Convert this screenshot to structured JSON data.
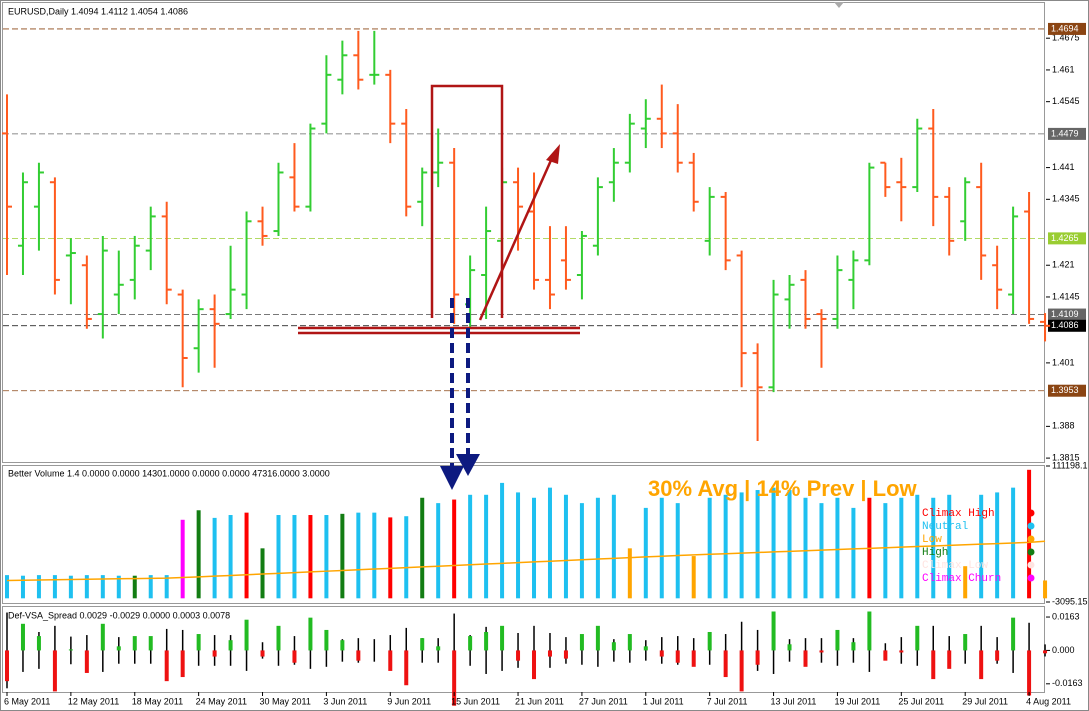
{
  "chart_data": [
    {
      "type": "ohlc",
      "title": "EURUSD,Daily  1.4094 1.4112 1.4054 1.4086",
      "open": [
        1.448,
        1.425,
        1.433,
        1.438,
        1.423,
        1.421,
        1.411,
        1.415,
        1.418,
        1.424,
        1.431,
        1.415,
        1.404,
        1.412,
        1.411,
        1.415,
        1.43,
        1.428,
        1.439,
        1.433,
        1.45,
        1.459,
        1.464,
        1.46,
        1.46,
        1.45,
        1.434,
        1.44,
        1.442,
        1.413,
        1.419,
        1.426,
        1.438,
        1.432,
        1.418,
        1.422,
        1.419,
        1.425,
        1.438,
        1.442,
        1.449,
        1.451,
        1.448,
        1.442,
        1.426,
        1.435,
        1.423,
        1.403,
        1.396,
        1.414,
        1.418,
        1.411,
        1.41,
        1.418,
        1.422,
        1.442,
        1.438,
        1.437,
        1.449,
        1.435,
        1.43,
        1.437,
        1.421,
        1.415,
        1.432,
        1.4094
      ],
      "high": [
        1.456,
        1.44,
        1.442,
        1.439,
        1.4265,
        1.423,
        1.427,
        1.424,
        1.427,
        1.433,
        1.434,
        1.416,
        1.414,
        1.415,
        1.425,
        1.432,
        1.433,
        1.442,
        1.446,
        1.45,
        1.464,
        1.467,
        1.469,
        1.469,
        1.461,
        1.453,
        1.441,
        1.449,
        1.445,
        1.423,
        1.433,
        1.441,
        1.441,
        1.44,
        1.429,
        1.429,
        1.428,
        1.439,
        1.445,
        1.452,
        1.455,
        1.458,
        1.454,
        1.444,
        1.437,
        1.436,
        1.424,
        1.405,
        1.418,
        1.419,
        1.42,
        1.412,
        1.423,
        1.424,
        1.442,
        1.442,
        1.443,
        1.451,
        1.453,
        1.437,
        1.439,
        1.442,
        1.425,
        1.433,
        1.436,
        1.4112
      ],
      "low": [
        1.419,
        1.419,
        1.424,
        1.415,
        1.413,
        1.408,
        1.406,
        1.411,
        1.414,
        1.42,
        1.413,
        1.396,
        1.399,
        1.4,
        1.41,
        1.412,
        1.425,
        1.427,
        1.432,
        1.432,
        1.448,
        1.456,
        1.457,
        1.458,
        1.446,
        1.431,
        1.429,
        1.437,
        1.409,
        1.408,
        1.41,
        1.421,
        1.424,
        1.416,
        1.412,
        1.416,
        1.414,
        1.423,
        1.434,
        1.44,
        1.445,
        1.445,
        1.44,
        1.432,
        1.423,
        1.42,
        1.396,
        1.385,
        1.395,
        1.408,
        1.408,
        1.4,
        1.408,
        1.412,
        1.421,
        1.435,
        1.43,
        1.436,
        1.429,
        1.423,
        1.426,
        1.418,
        1.412,
        1.411,
        1.409,
        1.4054
      ],
      "close": [
        1.433,
        1.438,
        1.44,
        1.418,
        1.4235,
        1.41,
        1.424,
        1.417,
        1.425,
        1.431,
        1.416,
        1.402,
        1.412,
        1.409,
        1.416,
        1.43,
        1.427,
        1.44,
        1.433,
        1.449,
        1.46,
        1.464,
        1.459,
        1.46,
        1.45,
        1.433,
        1.44,
        1.442,
        1.415,
        1.42,
        1.428,
        1.438,
        1.433,
        1.418,
        1.415,
        1.418,
        1.427,
        1.437,
        1.442,
        1.45,
        1.451,
        1.448,
        1.442,
        1.434,
        1.435,
        1.422,
        1.403,
        1.396,
        1.415,
        1.417,
        1.41,
        1.41,
        1.42,
        1.422,
        1.441,
        1.437,
        1.437,
        1.449,
        1.435,
        1.426,
        1.438,
        1.423,
        1.416,
        1.431,
        1.41,
        1.4086
      ],
      "up_color": "#32cd32",
      "down_color": "#ff5a1e",
      "ylim": [
        1.3807,
        1.4743
      ],
      "yticks": [
        1.4675,
        1.461,
        1.4545,
        1.441,
        1.4345,
        1.421,
        1.4145,
        1.401,
        1.388,
        1.3815
      ],
      "level_values": [
        1.4694,
        1.4479,
        1.4265,
        1.4109,
        1.3953,
        1.4086
      ],
      "level_colors": [
        "#8b4513",
        "#666666",
        "#9acd32",
        "#666666",
        "#8b4513",
        "#000000"
      ]
    },
    {
      "type": "bar",
      "title": "Better Volume 1.4 0.0000 0.0000 14301.0000 0.0000 0.0000 47316.0000 3.0000",
      "subtitle": "30% Avg | 14% Prev | Low",
      "values": [
        19500,
        19000,
        19500,
        19500,
        19000,
        19500,
        19500,
        19000,
        19000,
        19500,
        19500,
        66000,
        74000,
        67600,
        70000,
        72000,
        42000,
        70000,
        70000,
        70000,
        70000,
        71000,
        72000,
        72000,
        68000,
        69000,
        84500,
        80000,
        83000,
        87000,
        87000,
        97000,
        89000,
        84500,
        93000,
        87000,
        80000,
        84500,
        87000,
        42000,
        76000,
        84500,
        80000,
        35500,
        84500,
        87000,
        89000,
        91000,
        93000,
        91000,
        84500,
        80000,
        84500,
        76000,
        84500,
        80000,
        84500,
        87000,
        84500,
        87000,
        27000,
        87000,
        89000,
        93000,
        108000,
        15000
      ],
      "bar_colors": [
        "#1ec0f0",
        "#1ec0f0",
        "#1ec0f0",
        "#1ec0f0",
        "#1ec0f0",
        "#1ec0f0",
        "#1ec0f0",
        "#1ec0f0",
        "#137d13",
        "#1ec0f0",
        "#1ec0f0",
        "#ff00ff",
        "#137d13",
        "#1ec0f0",
        "#1ec0f0",
        "#ff0000",
        "#137d13",
        "#1ec0f0",
        "#1ec0f0",
        "#ff0000",
        "#1ec0f0",
        "#137d13",
        "#1ec0f0",
        "#1ec0f0",
        "#ff0000",
        "#1ec0f0",
        "#137d13",
        "#1ec0f0",
        "#ff0000",
        "#1ec0f0",
        "#1ec0f0",
        "#1ec0f0",
        "#1ec0f0",
        "#1ec0f0",
        "#1ec0f0",
        "#1ec0f0",
        "#1ec0f0",
        "#1ec0f0",
        "#1ec0f0",
        "#ffa500",
        "#1ec0f0",
        "#1ec0f0",
        "#1ec0f0",
        "#ffa500",
        "#1ec0f0",
        "#1ec0f0",
        "#1ec0f0",
        "#1ec0f0",
        "#1ec0f0",
        "#1ec0f0",
        "#1ec0f0",
        "#1ec0f0",
        "#1ec0f0",
        "#1ec0f0",
        "#ff0000",
        "#1ec0f0",
        "#1ec0f0",
        "#1ec0f0",
        "#1ec0f0",
        "#1ec0f0",
        "#ffa500",
        "#1ec0f0",
        "#1ec0f0",
        "#1ec0f0",
        "#ff0000",
        "#ffa500"
      ],
      "average": [
        15000,
        15200,
        15400,
        15600,
        15800,
        16000,
        16200,
        16400,
        16600,
        16800,
        17000,
        17500,
        18000,
        18600,
        19200,
        19800,
        20400,
        21000,
        21600,
        22200,
        22800,
        23400,
        24000,
        24600,
        25200,
        25800,
        26400,
        27000,
        27600,
        28200,
        28800,
        29400,
        30000,
        30600,
        31200,
        31800,
        32400,
        33000,
        33600,
        34200,
        34800,
        35400,
        36000,
        36500,
        37000,
        37500,
        38000,
        38500,
        39000,
        39500,
        40000,
        40500,
        41000,
        41500,
        42000,
        42500,
        43000,
        43500,
        44000,
        44500,
        45000,
        45500,
        46000,
        46500,
        47000,
        48000
      ],
      "average_color": "#ffa500",
      "ylim": [
        -3095.15,
        111198.1
      ],
      "yticks": [
        111198.1,
        -3095.15
      ],
      "legend": [
        {
          "name": "Climax High",
          "color": "#ff0000"
        },
        {
          "name": "Neutral",
          "color": "#1ec0f0"
        },
        {
          "name": "Low",
          "color": "#ffa500"
        },
        {
          "name": "High",
          "color": "#137d13"
        },
        {
          "name": "Climax Low",
          "color": "#ffe4e1"
        },
        {
          "name": "Climax Churn",
          "color": "#ff00ff"
        }
      ]
    },
    {
      "type": "spread",
      "title": "Def-VSA_Spread 0.0029 -0.0029 0.0000 0.0003 0.0078",
      "range": [
        0.037,
        0.021,
        0.018,
        0.024,
        0.0135,
        0.015,
        0.021,
        0.013,
        0.013,
        0.013,
        0.021,
        0.02,
        0.015,
        0.015,
        0.015,
        0.02,
        0.008,
        0.015,
        0.014,
        0.018,
        0.016,
        0.011,
        0.012,
        0.011,
        0.015,
        0.022,
        0.012,
        0.012,
        0.036,
        0.015,
        0.023,
        0.02,
        0.017,
        0.024,
        0.017,
        0.013,
        0.014,
        0.016,
        0.011,
        0.012,
        0.01,
        0.013,
        0.014,
        0.012,
        0.014,
        0.016,
        0.028,
        0.02,
        0.023,
        0.011,
        0.012,
        0.012,
        0.015,
        0.012,
        0.021,
        0.007,
        0.013,
        0.015,
        0.024,
        0.014,
        0.013,
        0.024,
        0.013,
        0.022,
        0.027,
        0.0059
      ],
      "body": [
        -0.015,
        0.013,
        0.007,
        -0.02,
        0.0005,
        -0.011,
        0.013,
        0.002,
        0.007,
        0.007,
        -0.015,
        -0.013,
        0.008,
        -0.003,
        0.005,
        0.015,
        -0.003,
        0.012,
        -0.006,
        0.016,
        0.01,
        0.005,
        -0.005,
        0.0,
        -0.01,
        -0.017,
        0.006,
        0.002,
        -0.027,
        0.007,
        0.009,
        0.012,
        -0.005,
        -0.014,
        -0.003,
        -0.004,
        0.008,
        0.012,
        0.004,
        0.008,
        0.002,
        -0.003,
        -0.006,
        -0.008,
        0.009,
        -0.013,
        -0.02,
        -0.007,
        0.019,
        0.003,
        -0.008,
        -0.001,
        0.01,
        0.004,
        0.019,
        -0.005,
        -0.001,
        0.012,
        -0.014,
        -0.009,
        0.008,
        -0.014,
        -0.005,
        0.016,
        -0.022,
        -0.0014
      ],
      "range_color": "#000000",
      "up_color": "#22bb22",
      "down_color": "#ee1111",
      "ylim": [
        -0.0203,
        0.0212
      ],
      "yticks": [
        0.0163,
        {
          "value": 0,
          "label": "0.000"
        },
        -0.0163
      ],
      "categories": [
        "6 May 2011",
        null,
        null,
        null,
        "12 May 2011",
        null,
        null,
        null,
        "18 May 2011",
        null,
        null,
        null,
        "24 May 2011",
        null,
        null,
        null,
        "30 May 2011",
        null,
        null,
        null,
        "3 Jun 2011",
        null,
        null,
        null,
        "9 Jun 2011",
        null,
        null,
        null,
        "15 Jun 2011",
        null,
        null,
        null,
        "21 Jun 2011",
        null,
        null,
        null,
        "27 Jun 2011",
        null,
        null,
        null,
        "1 Jul 2011",
        null,
        null,
        null,
        "7 Jul 2011",
        null,
        null,
        null,
        "13 Jul 2011",
        null,
        null,
        null,
        "19 Jul 2011",
        null,
        null,
        null,
        "25 Jul 2011",
        null,
        null,
        null,
        "29 Jul 2011",
        null,
        null,
        null,
        "4 Aug 2011",
        null
      ]
    }
  ]
}
